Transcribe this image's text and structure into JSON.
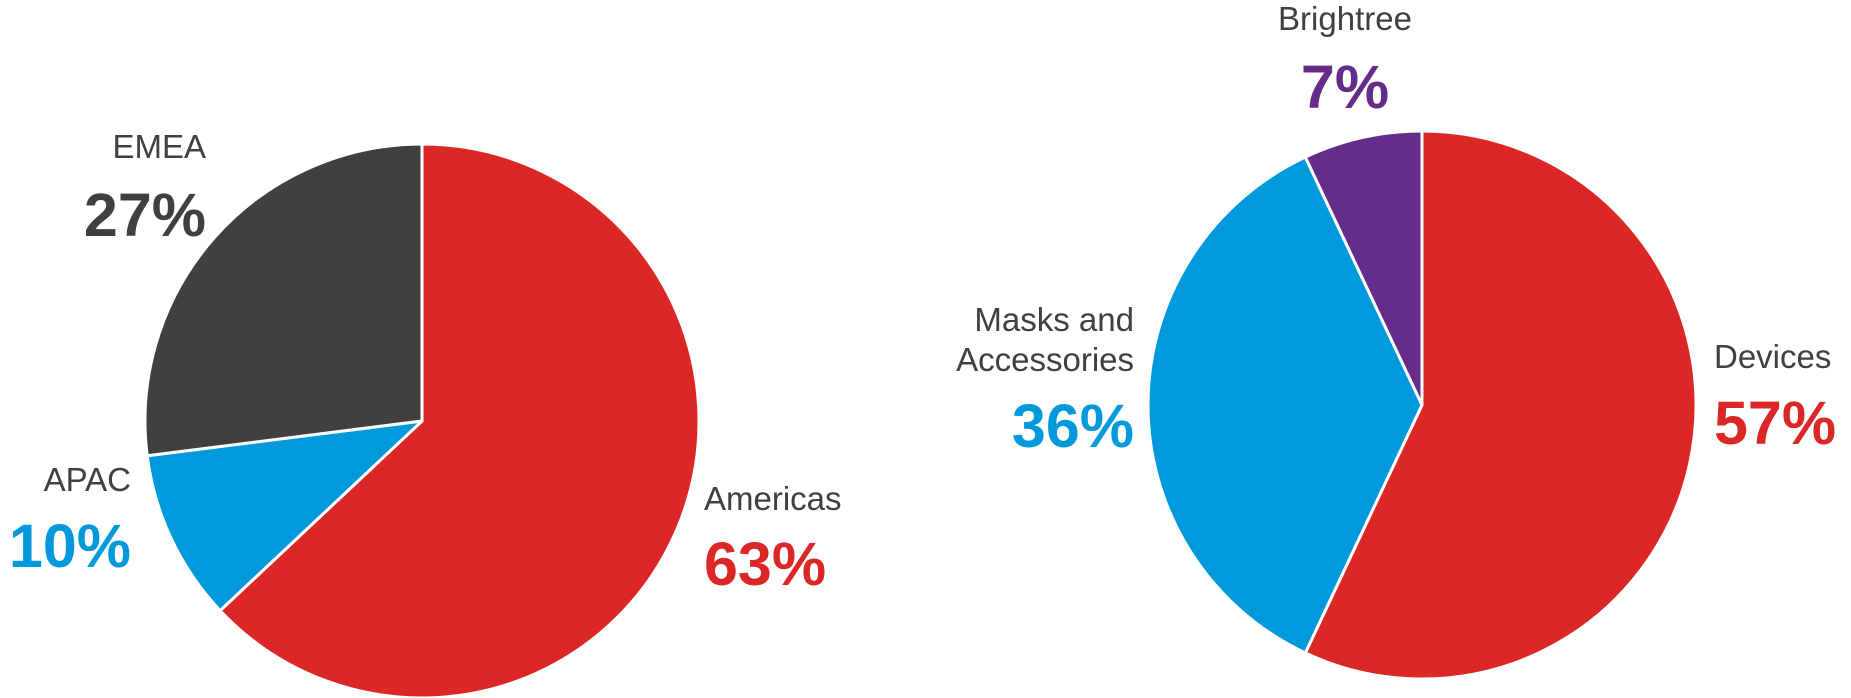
{
  "chart_data": [
    {
      "type": "pie",
      "title": "",
      "slices": [
        {
          "label": "Americas",
          "value": 63,
          "value_label": "63%",
          "color": "#DC2727"
        },
        {
          "label": "APAC",
          "value": 10,
          "value_label": "10%",
          "color": "#0099DB"
        },
        {
          "label": "EMEA",
          "value": 27,
          "value_label": "27%",
          "color": "#404040"
        }
      ],
      "start": "12 o'clock",
      "direction": "clockwise",
      "legend": "none (direct labels)"
    },
    {
      "type": "pie",
      "title": "",
      "slices": [
        {
          "label": "Devices",
          "value": 57,
          "value_label": "57%",
          "color": "#DC2727"
        },
        {
          "label": "Masks and Accessories",
          "label_lines": [
            "Masks and",
            "Accessories"
          ],
          "value": 36,
          "value_label": "36%",
          "color": "#0099DB"
        },
        {
          "label": "Brightree",
          "value": 7,
          "value_label": "7%",
          "color": "#652D89"
        }
      ],
      "start": "12 o'clock",
      "direction": "clockwise",
      "legend": "none (direct labels)"
    }
  ],
  "colors": {
    "label_text": "#404040",
    "slice_border": "#ffffff"
  }
}
